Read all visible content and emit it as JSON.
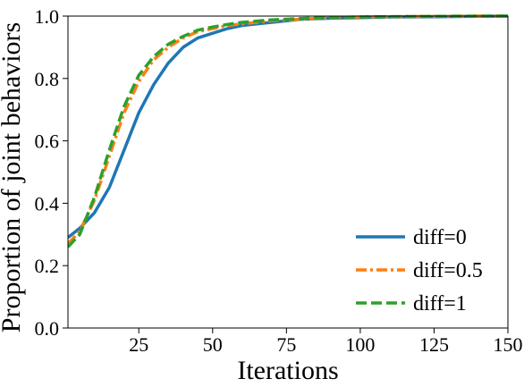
{
  "chart_data": {
    "type": "line",
    "title": "",
    "xlabel": "Iterations",
    "ylabel": "Proportion of joint behaviors",
    "xlim": [
      1,
      150
    ],
    "ylim": [
      0.0,
      1.0
    ],
    "x_ticks": [
      25,
      50,
      75,
      100,
      125,
      150
    ],
    "x_tick_labels": [
      "25",
      "50",
      "75",
      "100",
      "125",
      "150"
    ],
    "y_ticks": [
      0.0,
      0.2,
      0.4,
      0.6,
      0.8,
      1.0
    ],
    "y_tick_labels": [
      "0.0",
      "0.2",
      "0.4",
      "0.6",
      "0.8",
      "1.0"
    ],
    "grid": false,
    "legend_position": "lower-right",
    "series": [
      {
        "name": "diff=0",
        "color": "#1f77b4",
        "dash": "solid",
        "x": [
          1,
          5,
          10,
          15,
          20,
          25,
          30,
          35,
          40,
          45,
          50,
          55,
          60,
          70,
          80,
          90,
          100,
          110,
          125,
          140,
          150
        ],
        "y": [
          0.29,
          0.32,
          0.37,
          0.45,
          0.57,
          0.69,
          0.78,
          0.85,
          0.9,
          0.93,
          0.945,
          0.96,
          0.97,
          0.98,
          0.99,
          0.993,
          0.995,
          0.997,
          0.998,
          0.999,
          1.0
        ]
      },
      {
        "name": "diff=0.5",
        "color": "#ff7f0e",
        "dash": "dashdot",
        "x": [
          1,
          5,
          10,
          15,
          20,
          25,
          30,
          35,
          40,
          45,
          50,
          55,
          60,
          70,
          80,
          90,
          100,
          110,
          125,
          140,
          150
        ],
        "y": [
          0.27,
          0.31,
          0.41,
          0.55,
          0.69,
          0.79,
          0.86,
          0.9,
          0.93,
          0.95,
          0.96,
          0.97,
          0.975,
          0.985,
          0.99,
          0.995,
          0.997,
          0.998,
          0.999,
          1.0,
          1.0
        ]
      },
      {
        "name": "diff=1",
        "color": "#2ca02c",
        "dash": "dashed",
        "x": [
          1,
          5,
          10,
          15,
          20,
          25,
          30,
          35,
          40,
          45,
          50,
          55,
          60,
          70,
          80,
          90,
          100,
          110,
          125,
          140,
          150
        ],
        "y": [
          0.26,
          0.3,
          0.42,
          0.57,
          0.71,
          0.81,
          0.87,
          0.91,
          0.935,
          0.955,
          0.965,
          0.973,
          0.98,
          0.988,
          0.992,
          0.996,
          0.997,
          0.998,
          0.999,
          1.0,
          1.0
        ]
      }
    ]
  }
}
